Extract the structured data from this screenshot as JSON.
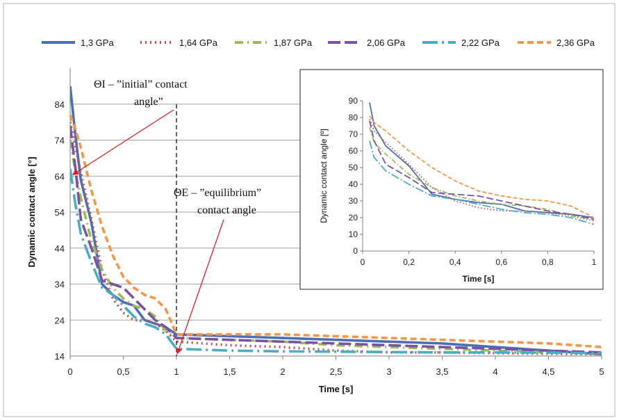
{
  "chart_data": {
    "type": "line",
    "xlabel": "Time [s]",
    "ylabel": "Dynamic contact angle [°]",
    "xlim": [
      0,
      5
    ],
    "ylim": [
      14,
      94
    ],
    "x_ticks": [
      0,
      0.5,
      1,
      1.5,
      2,
      2.5,
      3,
      3.5,
      4,
      4.5,
      5
    ],
    "x_tick_labels": [
      "0",
      "0,5",
      "1",
      "1,5",
      "2",
      "2,5",
      "3",
      "3,5",
      "4",
      "4,5",
      "5"
    ],
    "y_ticks": [
      14,
      24,
      34,
      44,
      54,
      64,
      74,
      84
    ],
    "y_tick_labels": [
      "14",
      "24",
      "34",
      "44",
      "54",
      "64",
      "74",
      "84"
    ],
    "grid": "horizontal",
    "legend_placement": "top",
    "colors": {
      "s1": "#4a6fb4",
      "s2": "#c0504d",
      "s3": "#9bbb59",
      "s4": "#7a52a3",
      "s5": "#4bacc6",
      "s6": "#f79646"
    },
    "series": [
      {
        "name": "1,3 GPa",
        "key": "s1",
        "dash": "solid",
        "x": [
          0,
          0.05,
          0.1,
          0.2,
          0.3,
          0.4,
          0.5,
          0.6,
          0.7,
          0.8,
          0.9,
          1.0,
          1.5,
          2.0,
          2.5,
          3.0,
          3.5,
          4.0,
          4.5,
          5.0
        ],
        "y": [
          89,
          75,
          63,
          51,
          34,
          31,
          29,
          28,
          24,
          23,
          22,
          20,
          19.5,
          19,
          18.5,
          18,
          17.5,
          16.5,
          15.5,
          14.5
        ]
      },
      {
        "name": "1,64 GPa",
        "key": "s2",
        "dash": "dot",
        "x": [
          0,
          0.05,
          0.1,
          0.2,
          0.3,
          0.4,
          0.5,
          0.6,
          0.7,
          0.8,
          0.9,
          1.0,
          1.5,
          2.0,
          2.5,
          3.0,
          3.5,
          4.0,
          4.5,
          5.0
        ],
        "y": [
          79,
          72,
          65,
          52,
          38,
          30,
          26,
          24,
          24,
          23,
          21,
          18,
          17,
          16.5,
          15.5,
          15,
          15,
          14.8,
          14.6,
          14.5
        ]
      },
      {
        "name": "1,87 GPa",
        "key": "s3",
        "dash": "dashdot",
        "x": [
          0,
          0.05,
          0.1,
          0.2,
          0.3,
          0.4,
          0.5,
          0.6,
          0.7,
          0.8,
          0.9,
          1.0,
          1.5,
          2.0,
          2.5,
          3.0,
          3.5,
          4.0,
          4.5,
          5.0
        ],
        "y": [
          74,
          65,
          58,
          46,
          38,
          33,
          30,
          28,
          27,
          25,
          21,
          19,
          18.5,
          18,
          17,
          16.5,
          16,
          15.5,
          15,
          14.8
        ]
      },
      {
        "name": "2,06 GPa",
        "key": "s4",
        "dash": "longdash",
        "x": [
          0,
          0.05,
          0.1,
          0.2,
          0.3,
          0.4,
          0.5,
          0.6,
          0.7,
          0.8,
          0.9,
          1.0,
          1.5,
          2.0,
          2.5,
          3.0,
          3.5,
          4.0,
          4.5,
          5.0
        ],
        "y": [
          78,
          66,
          52,
          44,
          35,
          34,
          33,
          30,
          27,
          24,
          22,
          19,
          18.5,
          18,
          17.5,
          17,
          16.5,
          16,
          15.5,
          15
        ]
      },
      {
        "name": "2,22 GPa",
        "key": "s5",
        "dash": "longdashdot",
        "x": [
          0,
          0.05,
          0.1,
          0.2,
          0.3,
          0.4,
          0.5,
          0.6,
          0.7,
          0.8,
          0.9,
          1.0,
          1.5,
          2.0,
          2.5,
          3.0,
          3.5,
          4.0,
          4.5,
          5.0
        ],
        "y": [
          66,
          56,
          48,
          40,
          33,
          31,
          28,
          25,
          23,
          22,
          20,
          16,
          15.5,
          15.3,
          15.2,
          15.1,
          15,
          15,
          14.9,
          14.8
        ]
      },
      {
        "name": "2,36 GPa",
        "key": "s6",
        "dash": "dash",
        "x": [
          0,
          0.05,
          0.1,
          0.2,
          0.3,
          0.4,
          0.5,
          0.6,
          0.7,
          0.8,
          0.9,
          1.0,
          1.5,
          2.0,
          2.5,
          3.0,
          3.5,
          4.0,
          4.5,
          5.0
        ],
        "y": [
          81,
          77,
          72,
          60,
          50,
          42,
          36,
          33,
          31,
          30,
          27,
          20,
          20,
          20,
          19.5,
          19,
          18.5,
          18,
          17.5,
          16.5
        ]
      }
    ],
    "annotations": [
      {
        "id": "initial",
        "line1": "ΘI – ”initial” contact",
        "line2": "angle”",
        "point_x": 0.05,
        "point_y": 64
      },
      {
        "id": "equilibrium",
        "line1": "ΘE – ”equilibrium”",
        "line2": "contact angle",
        "point_x": 1.0,
        "point_y": 14
      }
    ],
    "reference_line_x": 1.0,
    "inset": {
      "xlabel": "Time [s]",
      "ylabel": "Dynamic contact angle [º]",
      "xlim": [
        0,
        1
      ],
      "ylim": [
        0,
        90
      ],
      "x_ticks": [
        0,
        0.2,
        0.4,
        0.6,
        0.8,
        1
      ],
      "x_tick_labels": [
        "0",
        "0,2",
        "0,4",
        "0,6",
        "0,8",
        "1"
      ],
      "y_ticks": [
        0,
        10,
        20,
        30,
        40,
        50,
        60,
        70,
        80,
        90
      ],
      "y_tick_labels": [
        "0",
        "10",
        "20",
        "30",
        "40",
        "50",
        "60",
        "70",
        "80",
        "90"
      ],
      "grid": "none"
    }
  }
}
